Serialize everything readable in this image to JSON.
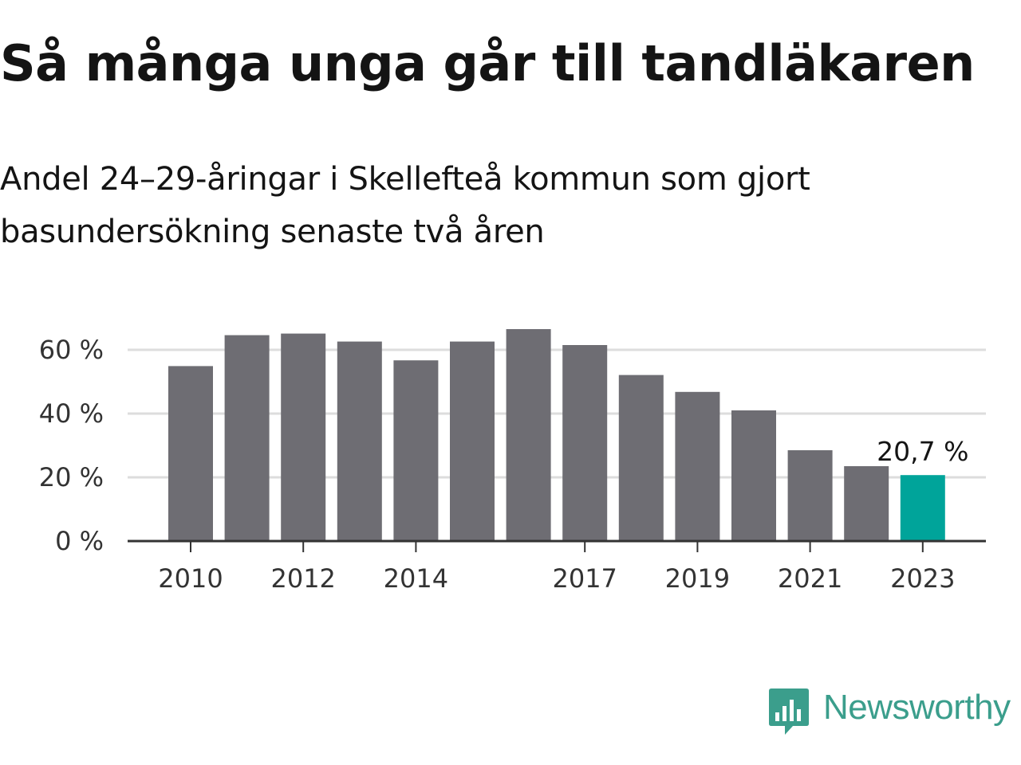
{
  "title": "Så många unga går till tandläkaren",
  "subtitle": "Andel 24–29-åringar i Skellefteå kommun som gjort basundersökning senaste två åren",
  "brand": {
    "name": "Newsworthy",
    "color": "#3b9e8c",
    "icon": "newsworthy-logo-icon"
  },
  "colors": {
    "bar": "#6e6d73",
    "highlight": "#00a49a",
    "grid": "#dddddd",
    "axis": "#333333"
  },
  "chart_data": {
    "type": "bar",
    "title": "Så många unga går till tandläkaren",
    "subtitle": "Andel 24–29-åringar i Skellefteå kommun som gjort basundersökning senaste två åren",
    "xlabel": "",
    "ylabel": "",
    "categories": [
      "2010",
      "2011",
      "2012",
      "2013",
      "2014",
      "2015",
      "2016",
      "2017",
      "2018",
      "2019",
      "2020",
      "2021",
      "2022",
      "2023"
    ],
    "values": [
      54.9,
      64.6,
      65.1,
      62.6,
      56.7,
      62.6,
      66.5,
      61.5,
      52.1,
      46.8,
      41.0,
      28.5,
      23.5,
      20.7
    ],
    "ylim": [
      0,
      66.5
    ],
    "yticks": [
      0,
      20,
      40,
      60
    ],
    "ytick_labels": [
      "0 %",
      "20 %",
      "40 %",
      "60 %"
    ],
    "xtick_labels": [
      "2010",
      "2012",
      "2014",
      "2017",
      "2019",
      "2021",
      "2023"
    ],
    "highlight_index": 13,
    "annotation": "20,7 %",
    "grid": true,
    "legend": "none"
  }
}
